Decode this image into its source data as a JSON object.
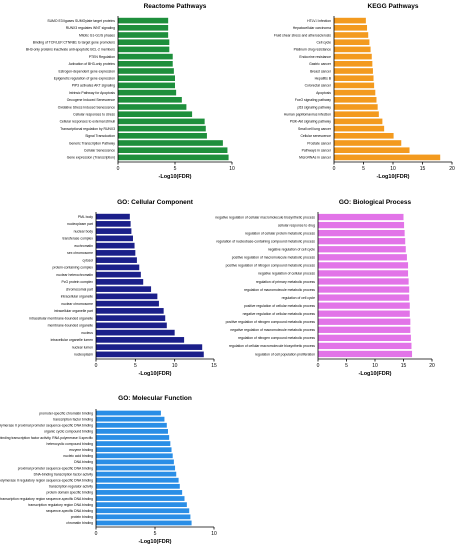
{
  "chart_data": [
    {
      "type": "bar",
      "orientation": "horizontal",
      "title": "Reactome Pathways",
      "xlabel": "-Log10(FDR)",
      "xlim": [
        0,
        10
      ],
      "xticks": [
        "0",
        "5",
        "10"
      ],
      "color": "#1e8f3c",
      "categories": [
        "SUMO E3 ligases SUMOylate target proteins",
        "RUNX3 regulates WNT signaling",
        "Mitotic G1-G1/S phases",
        "Binding of TCF/LEF:CTNNB1 to target gene promoters",
        "BH3-only proteins inactivate anti-apoptotic BCL-2 members",
        "PTEN Regulation",
        "Activation of BH3-only proteins",
        "Estrogen-dependent gene expression",
        "Epigenetic regulation of gene expression",
        "PIP3 activates AKT signaling",
        "Intrinsic Pathway for Apoptosis",
        "Oncogene Induced Senescence",
        "Oxidative Stress Induced Senescence",
        "Cellular responses to stress",
        "Cellular responses to external stimuli",
        "Transcriptional regulation by RUNX3",
        "Signal Transduction",
        "Generic Transcription Pathway",
        "Cellular Senescence",
        "Gene expression (Transcription)"
      ],
      "values": [
        4.4,
        4.4,
        4.4,
        4.5,
        4.5,
        4.8,
        4.8,
        4.9,
        5.0,
        5.0,
        5.1,
        5.6,
        6.0,
        6.5,
        7.6,
        7.7,
        7.8,
        9.2,
        9.6,
        9.7
      ]
    },
    {
      "type": "bar",
      "orientation": "horizontal",
      "title": "KEGG Pathways",
      "xlabel": "-Log10(FDR)",
      "xlim": [
        0,
        20
      ],
      "xticks": [
        "0",
        "5",
        "10",
        "15",
        "20"
      ],
      "color": "#f39a1e",
      "categories": [
        "HTLV-I infection",
        "Hepatocellular carcinoma",
        "Fluid shear stress and atherosclerosis",
        "Cell cycle",
        "Platinum drug resistance",
        "Endocrine resistance",
        "Gastric cancer",
        "Breast cancer",
        "Hepatitis B",
        "Colorectal cancer",
        "Apoptosis",
        "FoxO signaling pathway",
        "p53 signaling pathway",
        "Human papillomavirus infection",
        "PI3K-Akt signaling pathway",
        "Small cell lung cancer",
        "Cellular senescence",
        "Prostate cancer",
        "Pathways in cancer",
        "MicroRNAs in cancer"
      ],
      "values": [
        5.4,
        5.6,
        5.8,
        6.0,
        6.2,
        6.4,
        6.5,
        6.6,
        6.7,
        6.8,
        7.0,
        7.2,
        7.4,
        7.6,
        8.2,
        8.5,
        10.1,
        11.4,
        12.8,
        18.0
      ]
    },
    {
      "type": "bar",
      "orientation": "horizontal",
      "title": "GO: Cellular Component",
      "xlabel": "-Log10(FDR)",
      "xlim": [
        0,
        15
      ],
      "xticks": [
        "0",
        "5",
        "10",
        "15"
      ],
      "color": "#1b1f8a",
      "categories": [
        "PML body",
        "nucleoplasm part",
        "nuclear body",
        "transferase complex",
        "euchromatin",
        "sex chromosome",
        "cytosol",
        "protein-containing complex",
        "nuclear heterochromatin",
        "PcG protein complex",
        "chromosomal part",
        "intracellular organelle",
        "nuclear chromosome",
        "intracellular organelle part",
        "intracellular membrane-bounded organelle",
        "membrane-bounded organelle",
        "nucleus",
        "intracellular organelle lumen",
        "nuclear lumen",
        "nucleoplasm"
      ],
      "values": [
        4.3,
        4.4,
        4.5,
        4.7,
        4.9,
        5.0,
        5.2,
        5.5,
        5.7,
        6.0,
        7.0,
        7.8,
        8.0,
        8.6,
        8.8,
        9.0,
        10.0,
        11.2,
        13.5,
        13.7
      ]
    },
    {
      "type": "bar",
      "orientation": "horizontal",
      "title": "GO: Biological Process",
      "xlabel": "-Log10(FDR)",
      "xlim": [
        0,
        20
      ],
      "xticks": [
        "0",
        "5",
        "10",
        "15",
        "20"
      ],
      "color": "#e274e8",
      "categories": [
        "negative regulation of cellular macromolecule biosynthetic process",
        "cellular response to drug",
        "regulation of cellular protein metabolic process",
        "regulation of nucleobase-containing compound metabolic process",
        "negative regulation of cell cycle",
        "positive regulation of macromolecule metabolic process",
        "positive regulation of nitrogen compound metabolic process",
        "negative regulation of cellular process",
        "regulation of primary metabolic process",
        "regulation of macromolecule metabolic process",
        "regulation of cell cycle",
        "positive regulation of cellular metabolic process",
        "negative regulation of cellular metabolic process",
        "positive regulation of nitrogen compound metabolic process",
        "negative regulation of macromolecule metabolic process",
        "regulation of nitrogen compound metabolic process",
        "regulation of cellular macromolecule biosynthetic process",
        "regulation of cell population proliferation"
      ],
      "values": [
        15.0,
        15.1,
        15.2,
        15.3,
        15.4,
        15.6,
        15.8,
        15.8,
        15.9,
        16.0,
        16.0,
        16.1,
        16.1,
        16.2,
        16.2,
        16.3,
        16.4,
        16.5
      ]
    },
    {
      "type": "bar",
      "orientation": "horizontal",
      "title": "GO: Molecular Function",
      "xlabel": "-Log10(FDR)",
      "xlim": [
        0,
        10
      ],
      "xticks": [
        "0",
        "5",
        "10"
      ],
      "color": "#2a8ee6",
      "categories": [
        "promoter-specific chromatin binding",
        "transcription factor binding",
        "RNA polymerase II proximal promoter sequence-specific DNA binding",
        "organic cyclic compound binding",
        "DNA-binding transcription factor activity, RNA polymerase II-specific",
        "heterocyclic compound binding",
        "enzyme binding",
        "nucleic acid binding",
        "DNA binding",
        "proximal promoter sequence-specific DNA binding",
        "DNA-binding transcription factor activity",
        "RNA polymerase II regulatory region sequence-specific DNA binding",
        "transcription regulator activity",
        "protein domain specific binding",
        "transcription regulatory region sequence-specific DNA binding",
        "transcription regulatory region DNA binding",
        "sequence-specific DNA binding",
        "protein binding",
        "chromatin binding"
      ],
      "values": [
        5.5,
        5.8,
        6.0,
        6.1,
        6.2,
        6.3,
        6.4,
        6.5,
        6.6,
        6.7,
        6.8,
        7.0,
        7.1,
        7.3,
        7.5,
        7.7,
        7.9,
        8.0,
        8.1
      ]
    }
  ]
}
